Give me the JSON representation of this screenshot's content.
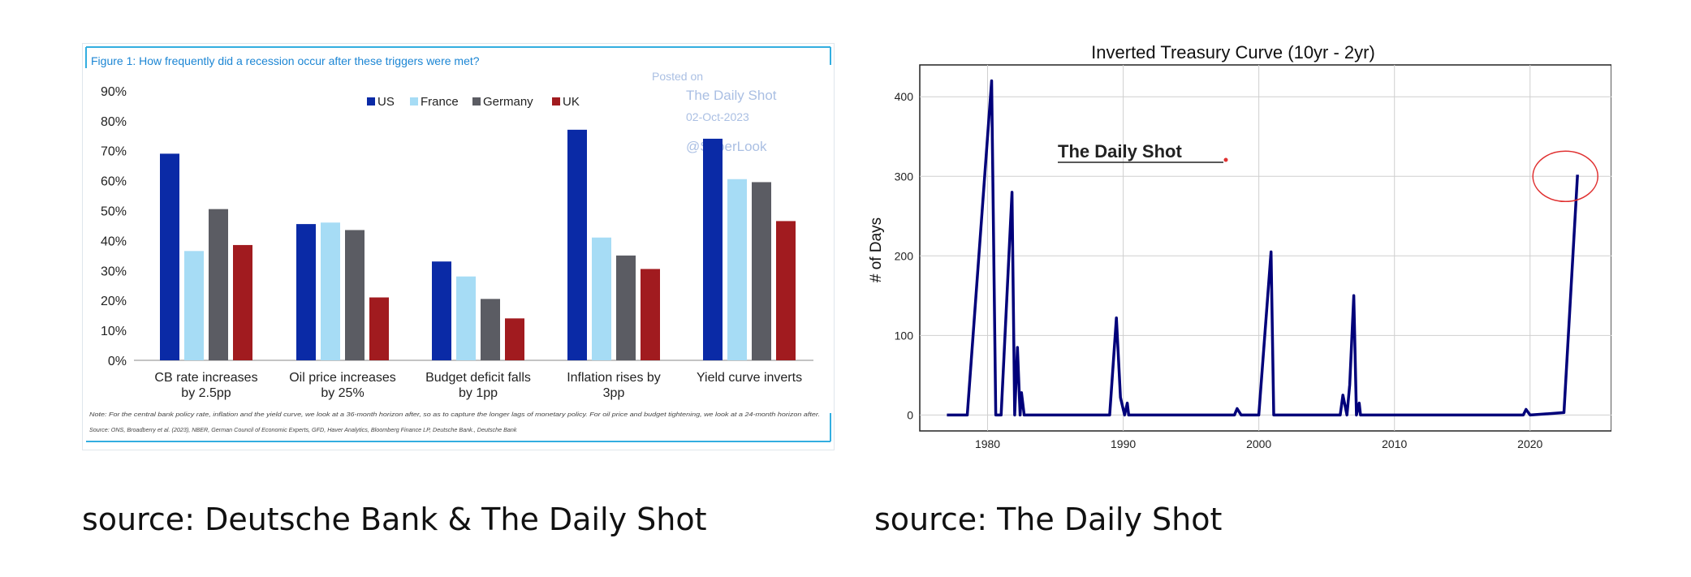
{
  "captions": {
    "left": "source: Deutsche Bank & The Daily Shot",
    "right": "source: The Daily Shot"
  },
  "colors": {
    "us": "#0a2aa6",
    "france": "#a6dcf5",
    "germany": "#5b5c63",
    "uk": "#a11b1f",
    "frame": "#33aee0",
    "title_blue": "#1c86d4",
    "line": "#00007a",
    "circle": "#e03131",
    "watermark": "#aabfe3"
  },
  "left_watermark": {
    "posted_on": "Posted on",
    "brand": "The Daily Shot",
    "date": "02-Oct-2023",
    "handle": "@SoberLook"
  },
  "left_notes": {
    "note": "Note: For the central bank policy rate, inflation and the yield curve, we look at a 36-month horizon after, so as to capture the longer lags of monetary policy. For oil price and budget tightening, we look at a 24-month horizon after.",
    "source": "Source: ONS, Broadberry et al. (2023), NBER, German Council of Economic Experts, GFD, Haver Analytics, Bloomberg Finance LP, Deutsche Bank., Deutsche Bank"
  },
  "right_logo": "The Daily Shot",
  "chart_data": [
    {
      "type": "bar",
      "title": "Figure 1: How frequently did a recession occur after these triggers were met?",
      "categories": [
        [
          "CB rate increases",
          "by 2.5pp"
        ],
        [
          "Oil price increases",
          "by 25%"
        ],
        [
          "Budget deficit falls",
          "by 1pp"
        ],
        [
          "Inflation rises by",
          "3pp"
        ],
        [
          "Yield curve inverts"
        ]
      ],
      "series": [
        {
          "name": "US",
          "values": [
            69,
            45.5,
            33,
            77,
            74
          ]
        },
        {
          "name": "France",
          "values": [
            36.5,
            46,
            28,
            41,
            60.5
          ]
        },
        {
          "name": "Germany",
          "values": [
            50.5,
            43.5,
            20.5,
            35,
            59.5
          ]
        },
        {
          "name": "UK",
          "values": [
            38.5,
            21,
            14,
            30.5,
            46.5
          ]
        }
      ],
      "ylim": [
        0,
        90
      ],
      "yticks": [
        "0%",
        "10%",
        "20%",
        "30%",
        "40%",
        "50%",
        "60%",
        "70%",
        "80%",
        "90%"
      ],
      "legend": "top-center",
      "grid": false
    },
    {
      "type": "line",
      "title": "Inverted Treasury Curve (10yr - 2yr)",
      "ylabel": "# of Days",
      "xlim": [
        1975,
        2026
      ],
      "ylim": [
        -20,
        440
      ],
      "xticks": [
        "1980",
        "1990",
        "2000",
        "2010",
        "2020"
      ],
      "yticks": [
        "0",
        "100",
        "200",
        "300",
        "400"
      ],
      "grid": true,
      "x": [
        1977.0,
        1978.5,
        1980.3,
        1980.6,
        1981.0,
        1981.8,
        1982.0,
        1982.2,
        1982.4,
        1982.5,
        1982.7,
        1983.0,
        1989.0,
        1989.5,
        1989.8,
        1990.1,
        1990.3,
        1990.4,
        1998.2,
        1998.4,
        1998.7,
        2000.0,
        2000.9,
        2001.1,
        2001.3,
        2006.0,
        2006.2,
        2006.5,
        2006.7,
        2007.0,
        2007.2,
        2007.4,
        2007.5,
        2019.5,
        2019.7,
        2020.0,
        2022.5,
        2023.5
      ],
      "values": [
        0,
        0,
        420,
        0,
        0,
        280,
        0,
        85,
        0,
        28,
        0,
        0,
        0,
        122,
        22,
        0,
        15,
        0,
        0,
        8,
        0,
        0,
        205,
        0,
        0,
        0,
        25,
        0,
        38,
        150,
        0,
        15,
        0,
        0,
        7,
        0,
        3,
        302
      ],
      "annotation": "red circle around latest value"
    }
  ]
}
